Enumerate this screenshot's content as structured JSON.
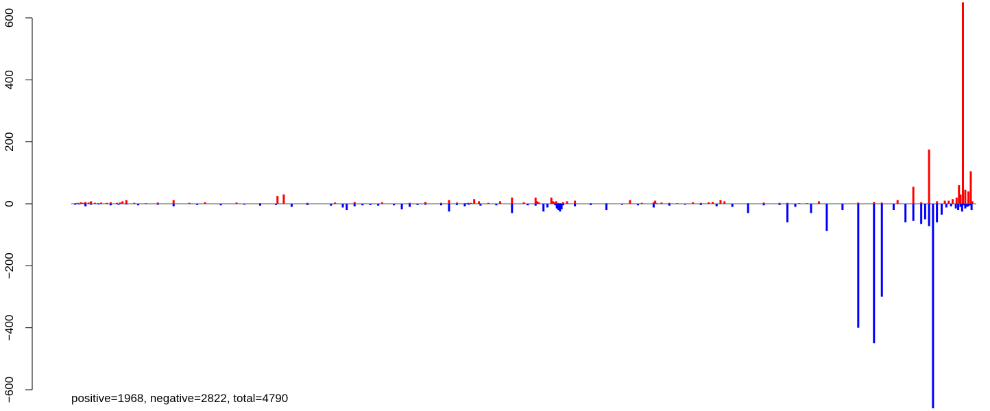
{
  "chart_data": {
    "type": "bar",
    "caption": "positive=1968, negative=2822, total=4790",
    "ylim": [
      -600,
      600
    ],
    "yticks": [
      -600,
      -400,
      -200,
      0,
      200,
      400,
      600
    ],
    "grid": false,
    "legend": "none",
    "colors": {
      "positive": "#ff0000",
      "negative": "#0000ff",
      "baseline": "#555555"
    },
    "series": [
      {
        "x": [
          5,
          8,
          12,
          15,
          18,
          22,
          25,
          30,
          34,
          38,
          45,
          50,
          58,
          62,
          65,
          70,
          80,
          95,
          110,
          130,
          150,
          170,
          210,
          240,
          262,
          270,
          300,
          335,
          360,
          395,
          430,
          450,
          470,
          480,
          490,
          500,
          502,
          504,
          506,
          508,
          512,
          518,
          530,
          545,
          560,
          575,
          590,
          592,
          594,
          610,
          612,
          614,
          616,
          618,
          620,
          622,
          625,
          630,
          640,
          660,
          680,
          710,
          725,
          740,
          742,
          744,
          750,
          760,
          770,
          790,
          800,
          810,
          815,
          825,
          830,
          860,
          880,
          900,
          910,
          925,
          935,
          950,
          1000,
          1020,
          1030,
          1050,
          1070,
          1080,
          1090,
          1100,
          1110,
          1115,
          1120,
          1125,
          1128,
          1130,
          1133,
          1136,
          1140,
          1143,
          1145
        ],
        "values": [
          2,
          3,
          5,
          3,
          6,
          4,
          8,
          3,
          2,
          4,
          3,
          5,
          3,
          4,
          8,
          12,
          3,
          2,
          4,
          12,
          3,
          5,
          4,
          2,
          25,
          30,
          3,
          4,
          6,
          5,
          3,
          6,
          3,
          12,
          4,
          2,
          2,
          3,
          2,
          3,
          15,
          8,
          3,
          8,
          20,
          5,
          20,
          8,
          5,
          20,
          8,
          5,
          8,
          3,
          2,
          2,
          5,
          8,
          10,
          2,
          2,
          12,
          3,
          5,
          10,
          2,
          4,
          3,
          2,
          5,
          3,
          5,
          6,
          12,
          8,
          2,
          4,
          3,
          3,
          2,
          2,
          8,
          4,
          6,
          4,
          12,
          55,
          5,
          175,
          8,
          10,
          10,
          15,
          20,
          60,
          30,
          650,
          45,
          40,
          105,
          8
        ]
      },
      {
        "x": [
          5,
          10,
          18,
          25,
          35,
          50,
          60,
          70,
          85,
          110,
          130,
          160,
          190,
          220,
          240,
          260,
          280,
          300,
          330,
          345,
          350,
          360,
          370,
          380,
          390,
          410,
          420,
          430,
          440,
          450,
          470,
          480,
          490,
          500,
          505,
          520,
          540,
          560,
          580,
          590,
          600,
          605,
          615,
          617,
          619,
          621,
          623,
          625,
          640,
          660,
          680,
          700,
          720,
          740,
          760,
          780,
          800,
          820,
          840,
          860,
          880,
          900,
          910,
          920,
          940,
          960,
          980,
          1000,
          1020,
          1030,
          1045,
          1060,
          1070,
          1080,
          1085,
          1090,
          1095,
          1100,
          1106,
          1112,
          1118,
          1124,
          1127,
          1130,
          1132,
          1134,
          1136,
          1138,
          1140,
          1142,
          1144
        ],
        "values": [
          -3,
          -2,
          -8,
          -3,
          -2,
          -5,
          -3,
          -2,
          -5,
          -3,
          -8,
          -4,
          -5,
          -3,
          -6,
          -4,
          -10,
          -4,
          -6,
          -12,
          -20,
          -8,
          -5,
          -4,
          -6,
          -5,
          -18,
          -10,
          -4,
          -3,
          -5,
          -25,
          -4,
          -8,
          -3,
          -6,
          -5,
          -30,
          -5,
          -6,
          -25,
          -12,
          -5,
          -15,
          -20,
          -25,
          -18,
          -5,
          -8,
          -4,
          -20,
          -3,
          -5,
          -12,
          -6,
          -3,
          -4,
          -8,
          -10,
          -30,
          -5,
          -4,
          -60,
          -10,
          -30,
          -88,
          -20,
          -400,
          -450,
          -300,
          -20,
          -60,
          -55,
          -65,
          -50,
          -72,
          -660,
          -60,
          -35,
          -12,
          -8,
          -15,
          -20,
          -10,
          -25,
          -5,
          -15,
          -10,
          -8,
          -5,
          -20
        ]
      }
    ]
  }
}
